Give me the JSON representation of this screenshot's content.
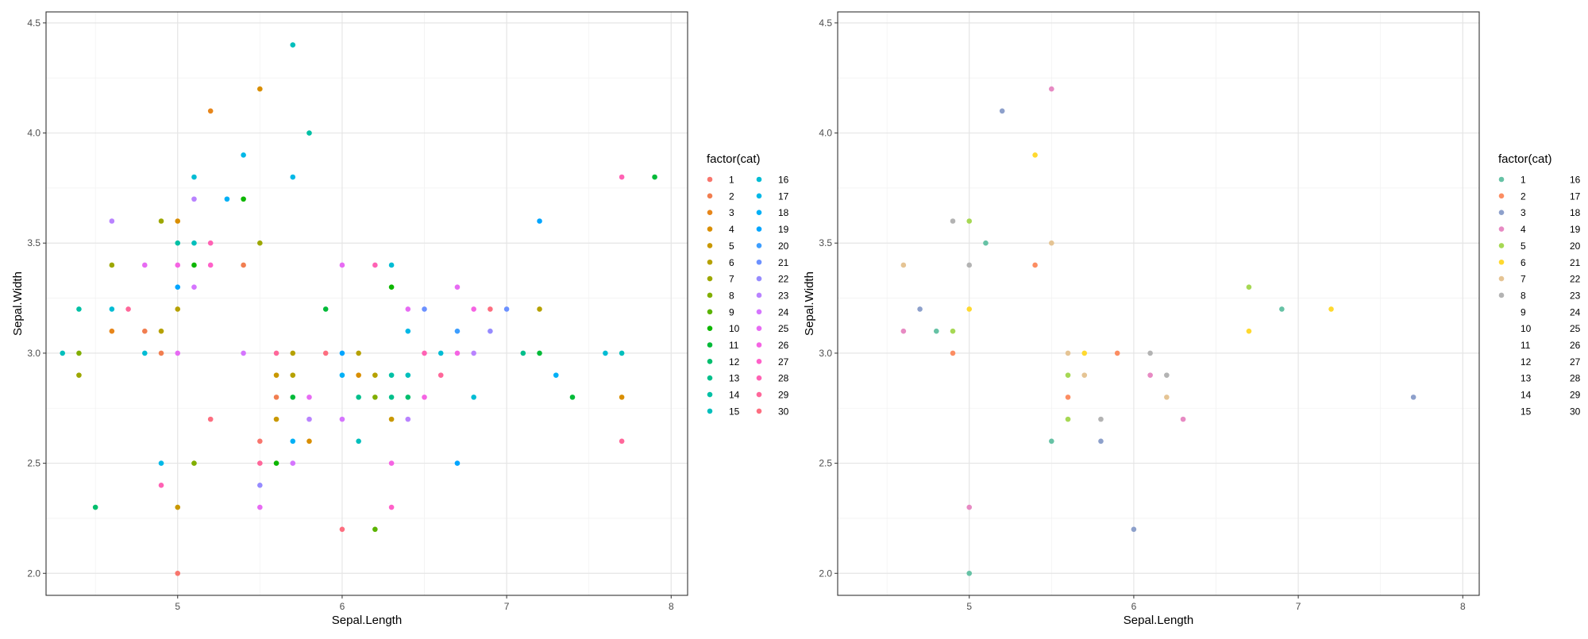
{
  "chart_data": [
    {
      "type": "scatter",
      "xlabel": "Sepal.Length",
      "ylabel": "Sepal.Width",
      "xlim": [
        4.2,
        8.1
      ],
      "ylim": [
        1.9,
        4.55
      ],
      "x_ticks": [
        "5",
        "6",
        "7",
        "8"
      ],
      "y_ticks": [
        "2.0",
        "2.5",
        "3.0",
        "3.5",
        "4.0",
        "4.5"
      ],
      "grid": true,
      "legend_title": "factor(cat)",
      "legend_position": "right",
      "legend_entries": [
        "1",
        "2",
        "3",
        "4",
        "5",
        "6",
        "7",
        "8",
        "9",
        "10",
        "11",
        "12",
        "13",
        "14",
        "15",
        "16",
        "17",
        "18",
        "19",
        "20",
        "21",
        "22",
        "23",
        "24",
        "25",
        "26",
        "27",
        "28",
        "29",
        "30"
      ],
      "legend_colors": [
        "#F8766D",
        "#F17E50",
        "#E7861B",
        "#D98E00",
        "#C99800",
        "#B6A100",
        "#9DA700",
        "#81AE00",
        "#5BB300",
        "#0DB600",
        "#00BA38",
        "#00BE6D",
        "#00BF8B",
        "#00C0A5",
        "#00BFBC",
        "#00BCD4",
        "#00B8E7",
        "#00B0F6",
        "#00A5FF",
        "#3D9EFF",
        "#6C91FF",
        "#968BFF",
        "#B983FF",
        "#D575FE",
        "#E76BF3",
        "#F564E3",
        "#FF61C9",
        "#FF62B4",
        "#FF679A",
        "#FD6E80"
      ],
      "points": [
        {
          "x": 4.3,
          "y": 3.0,
          "c": 15
        },
        {
          "x": 4.4,
          "y": 3.2,
          "c": 14
        },
        {
          "x": 4.4,
          "y": 3.0,
          "c": 8
        },
        {
          "x": 4.4,
          "y": 2.9,
          "c": 7
        },
        {
          "x": 4.5,
          "y": 2.3,
          "c": 12
        },
        {
          "x": 4.6,
          "y": 3.6,
          "c": 23
        },
        {
          "x": 4.6,
          "y": 3.4,
          "c": 7
        },
        {
          "x": 4.6,
          "y": 3.2,
          "c": 16
        },
        {
          "x": 4.6,
          "y": 3.1,
          "c": 3
        },
        {
          "x": 4.7,
          "y": 3.2,
          "c": 29
        },
        {
          "x": 4.8,
          "y": 3.4,
          "c": 25
        },
        {
          "x": 4.8,
          "y": 3.1,
          "c": 2
        },
        {
          "x": 4.8,
          "y": 3.0,
          "c": 16
        },
        {
          "x": 4.9,
          "y": 3.6,
          "c": 7
        },
        {
          "x": 4.9,
          "y": 3.1,
          "c": 6
        },
        {
          "x": 4.9,
          "y": 3.0,
          "c": 2
        },
        {
          "x": 4.9,
          "y": 2.5,
          "c": 17
        },
        {
          "x": 4.9,
          "y": 2.4,
          "c": 28
        },
        {
          "x": 5.0,
          "y": 3.6,
          "c": 4
        },
        {
          "x": 5.0,
          "y": 3.5,
          "c": 14
        },
        {
          "x": 5.0,
          "y": 3.4,
          "c": 26
        },
        {
          "x": 5.0,
          "y": 3.3,
          "c": 19
        },
        {
          "x": 5.0,
          "y": 3.2,
          "c": 6
        },
        {
          "x": 5.0,
          "y": 3.0,
          "c": 25
        },
        {
          "x": 5.0,
          "y": 2.3,
          "c": 5
        },
        {
          "x": 5.0,
          "y": 2.0,
          "c": 1
        },
        {
          "x": 5.1,
          "y": 3.8,
          "c": 16
        },
        {
          "x": 5.1,
          "y": 3.7,
          "c": 23
        },
        {
          "x": 5.1,
          "y": 3.5,
          "c": 15
        },
        {
          "x": 5.1,
          "y": 3.4,
          "c": 10
        },
        {
          "x": 5.1,
          "y": 3.3,
          "c": 24
        },
        {
          "x": 5.1,
          "y": 2.5,
          "c": 8
        },
        {
          "x": 5.2,
          "y": 4.1,
          "c": 3
        },
        {
          "x": 5.2,
          "y": 3.5,
          "c": 28
        },
        {
          "x": 5.2,
          "y": 3.4,
          "c": 27
        },
        {
          "x": 5.2,
          "y": 2.7,
          "c": 30
        },
        {
          "x": 5.3,
          "y": 3.7,
          "c": 18
        },
        {
          "x": 5.4,
          "y": 3.9,
          "c": 17
        },
        {
          "x": 5.4,
          "y": 3.7,
          "c": 10
        },
        {
          "x": 5.4,
          "y": 3.4,
          "c": 2
        },
        {
          "x": 5.4,
          "y": 3.0,
          "c": 24
        },
        {
          "x": 5.5,
          "y": 4.2,
          "c": 4
        },
        {
          "x": 5.5,
          "y": 3.5,
          "c": 7
        },
        {
          "x": 5.5,
          "y": 2.6,
          "c": 1
        },
        {
          "x": 5.5,
          "y": 2.5,
          "c": 29
        },
        {
          "x": 5.5,
          "y": 2.4,
          "c": 22
        },
        {
          "x": 5.5,
          "y": 2.3,
          "c": 25
        },
        {
          "x": 5.6,
          "y": 3.0,
          "c": 29
        },
        {
          "x": 5.6,
          "y": 2.9,
          "c": 5
        },
        {
          "x": 5.6,
          "y": 2.8,
          "c": 2
        },
        {
          "x": 5.6,
          "y": 2.7,
          "c": 5
        },
        {
          "x": 5.6,
          "y": 2.5,
          "c": 10
        },
        {
          "x": 5.7,
          "y": 4.4,
          "c": 15
        },
        {
          "x": 5.7,
          "y": 3.8,
          "c": 17
        },
        {
          "x": 5.7,
          "y": 3.0,
          "c": 6
        },
        {
          "x": 5.7,
          "y": 2.9,
          "c": 6
        },
        {
          "x": 5.7,
          "y": 2.8,
          "c": 11
        },
        {
          "x": 5.7,
          "y": 2.6,
          "c": 18
        },
        {
          "x": 5.7,
          "y": 2.5,
          "c": 24
        },
        {
          "x": 5.8,
          "y": 4.0,
          "c": 14
        },
        {
          "x": 5.8,
          "y": 2.8,
          "c": 25
        },
        {
          "x": 5.8,
          "y": 2.7,
          "c": 23
        },
        {
          "x": 5.8,
          "y": 2.6,
          "c": 4
        },
        {
          "x": 5.9,
          "y": 3.2,
          "c": 11
        },
        {
          "x": 5.9,
          "y": 3.0,
          "c": 30
        },
        {
          "x": 6.0,
          "y": 3.4,
          "c": 25
        },
        {
          "x": 6.0,
          "y": 3.0,
          "c": 19
        },
        {
          "x": 6.0,
          "y": 2.9,
          "c": 18
        },
        {
          "x": 6.0,
          "y": 2.7,
          "c": 24
        },
        {
          "x": 6.0,
          "y": 2.2,
          "c": 30
        },
        {
          "x": 6.1,
          "y": 3.0,
          "c": 6
        },
        {
          "x": 6.1,
          "y": 2.9,
          "c": 4
        },
        {
          "x": 6.1,
          "y": 2.8,
          "c": 13
        },
        {
          "x": 6.1,
          "y": 2.6,
          "c": 15
        },
        {
          "x": 6.2,
          "y": 3.4,
          "c": 28
        },
        {
          "x": 6.2,
          "y": 2.9,
          "c": 6
        },
        {
          "x": 6.2,
          "y": 2.8,
          "c": 8
        },
        {
          "x": 6.2,
          "y": 2.2,
          "c": 9
        },
        {
          "x": 6.3,
          "y": 3.4,
          "c": 16
        },
        {
          "x": 6.3,
          "y": 3.3,
          "c": 10
        },
        {
          "x": 6.3,
          "y": 2.9,
          "c": 14
        },
        {
          "x": 6.3,
          "y": 2.8,
          "c": 13
        },
        {
          "x": 6.3,
          "y": 2.7,
          "c": 5
        },
        {
          "x": 6.3,
          "y": 2.5,
          "c": 26
        },
        {
          "x": 6.3,
          "y": 2.3,
          "c": 27
        },
        {
          "x": 6.4,
          "y": 3.2,
          "c": 25
        },
        {
          "x": 6.4,
          "y": 3.1,
          "c": 17
        },
        {
          "x": 6.4,
          "y": 2.9,
          "c": 15
        },
        {
          "x": 6.4,
          "y": 2.8,
          "c": 12
        },
        {
          "x": 6.4,
          "y": 2.7,
          "c": 23
        },
        {
          "x": 6.5,
          "y": 3.2,
          "c": 21
        },
        {
          "x": 6.5,
          "y": 3.0,
          "c": 28
        },
        {
          "x": 6.5,
          "y": 2.8,
          "c": 26
        },
        {
          "x": 6.6,
          "y": 3.0,
          "c": 16
        },
        {
          "x": 6.6,
          "y": 2.9,
          "c": 29
        },
        {
          "x": 6.7,
          "y": 3.3,
          "c": 25
        },
        {
          "x": 6.7,
          "y": 3.1,
          "c": 20
        },
        {
          "x": 6.7,
          "y": 3.0,
          "c": 26
        },
        {
          "x": 6.7,
          "y": 2.5,
          "c": 19
        },
        {
          "x": 6.8,
          "y": 3.2,
          "c": 26
        },
        {
          "x": 6.8,
          "y": 3.0,
          "c": 23
        },
        {
          "x": 6.8,
          "y": 2.8,
          "c": 16
        },
        {
          "x": 6.9,
          "y": 3.2,
          "c": 30
        },
        {
          "x": 6.9,
          "y": 3.1,
          "c": 22
        },
        {
          "x": 7.0,
          "y": 3.2,
          "c": 21
        },
        {
          "x": 7.1,
          "y": 3.0,
          "c": 13
        },
        {
          "x": 7.2,
          "y": 3.6,
          "c": 19
        },
        {
          "x": 7.2,
          "y": 3.2,
          "c": 6
        },
        {
          "x": 7.2,
          "y": 3.0,
          "c": 11
        },
        {
          "x": 7.3,
          "y": 2.9,
          "c": 18
        },
        {
          "x": 7.4,
          "y": 2.8,
          "c": 11
        },
        {
          "x": 7.6,
          "y": 3.0,
          "c": 16
        },
        {
          "x": 7.7,
          "y": 3.8,
          "c": 28
        },
        {
          "x": 7.7,
          "y": 3.0,
          "c": 15
        },
        {
          "x": 7.7,
          "y": 2.8,
          "c": 4
        },
        {
          "x": 7.7,
          "y": 2.6,
          "c": 29
        },
        {
          "x": 7.9,
          "y": 3.8,
          "c": 11
        }
      ]
    },
    {
      "type": "scatter",
      "xlabel": "Sepal.Length",
      "ylabel": "Sepal.Width",
      "xlim": [
        4.2,
        8.1
      ],
      "ylim": [
        1.9,
        4.55
      ],
      "x_ticks": [
        "5",
        "6",
        "7",
        "8"
      ],
      "y_ticks": [
        "2.0",
        "2.5",
        "3.0",
        "3.5",
        "4.0",
        "4.5"
      ],
      "grid": true,
      "legend_title": "factor(cat)",
      "legend_position": "right",
      "legend_entries": [
        "1",
        "2",
        "3",
        "4",
        "5",
        "6",
        "7",
        "8",
        "9",
        "10",
        "11",
        "12",
        "13",
        "14",
        "15",
        "16",
        "17",
        "18",
        "19",
        "20",
        "21",
        "22",
        "23",
        "24",
        "25",
        "26",
        "27",
        "28",
        "29",
        "30"
      ],
      "legend_colors": [
        "#66C2A5",
        "#FC8D62",
        "#8DA0CB",
        "#E78AC3",
        "#A6D854",
        "#FFD92F",
        "#E5C494",
        "#B3B3B3",
        "",
        "",
        "",
        "",
        "",
        "",
        "",
        "",
        "",
        "",
        "",
        "",
        "",
        "",
        "",
        "",
        "",
        "",
        "",
        "",
        "",
        ""
      ],
      "points": [
        {
          "x": 5.5,
          "y": 4.2,
          "c": 4
        },
        {
          "x": 5.2,
          "y": 4.1,
          "c": 3
        },
        {
          "x": 5.4,
          "y": 3.9,
          "c": 6
        },
        {
          "x": 4.9,
          "y": 3.6,
          "c": 8
        },
        {
          "x": 5.0,
          "y": 3.6,
          "c": 5
        },
        {
          "x": 5.1,
          "y": 3.5,
          "c": 1
        },
        {
          "x": 5.5,
          "y": 3.5,
          "c": 7
        },
        {
          "x": 4.6,
          "y": 3.4,
          "c": 7
        },
        {
          "x": 5.0,
          "y": 3.4,
          "c": 8
        },
        {
          "x": 5.4,
          "y": 3.4,
          "c": 2
        },
        {
          "x": 6.7,
          "y": 3.3,
          "c": 5
        },
        {
          "x": 4.7,
          "y": 3.2,
          "c": 3
        },
        {
          "x": 5.0,
          "y": 3.2,
          "c": 6
        },
        {
          "x": 6.9,
          "y": 3.2,
          "c": 1
        },
        {
          "x": 7.2,
          "y": 3.2,
          "c": 6
        },
        {
          "x": 4.6,
          "y": 3.1,
          "c": 4
        },
        {
          "x": 4.8,
          "y": 3.1,
          "c": 1
        },
        {
          "x": 4.9,
          "y": 3.1,
          "c": 5
        },
        {
          "x": 6.7,
          "y": 3.1,
          "c": 6
        },
        {
          "x": 4.9,
          "y": 3.0,
          "c": 2
        },
        {
          "x": 5.6,
          "y": 3.0,
          "c": 7
        },
        {
          "x": 5.7,
          "y": 3.0,
          "c": 6
        },
        {
          "x": 5.9,
          "y": 3.0,
          "c": 2
        },
        {
          "x": 6.1,
          "y": 3.0,
          "c": 8
        },
        {
          "x": 5.6,
          "y": 2.9,
          "c": 5
        },
        {
          "x": 5.7,
          "y": 2.9,
          "c": 7
        },
        {
          "x": 6.1,
          "y": 2.9,
          "c": 4
        },
        {
          "x": 6.2,
          "y": 2.9,
          "c": 8
        },
        {
          "x": 5.6,
          "y": 2.8,
          "c": 2
        },
        {
          "x": 6.2,
          "y": 2.8,
          "c": 7
        },
        {
          "x": 7.7,
          "y": 2.8,
          "c": 3
        },
        {
          "x": 5.6,
          "y": 2.7,
          "c": 5
        },
        {
          "x": 5.8,
          "y": 2.7,
          "c": 8
        },
        {
          "x": 6.3,
          "y": 2.7,
          "c": 4
        },
        {
          "x": 5.5,
          "y": 2.6,
          "c": 1
        },
        {
          "x": 5.8,
          "y": 2.6,
          "c": 3
        },
        {
          "x": 5.0,
          "y": 2.3,
          "c": 4
        },
        {
          "x": 6.0,
          "y": 2.2,
          "c": 3
        },
        {
          "x": 5.0,
          "y": 2.0,
          "c": 1
        }
      ]
    }
  ]
}
